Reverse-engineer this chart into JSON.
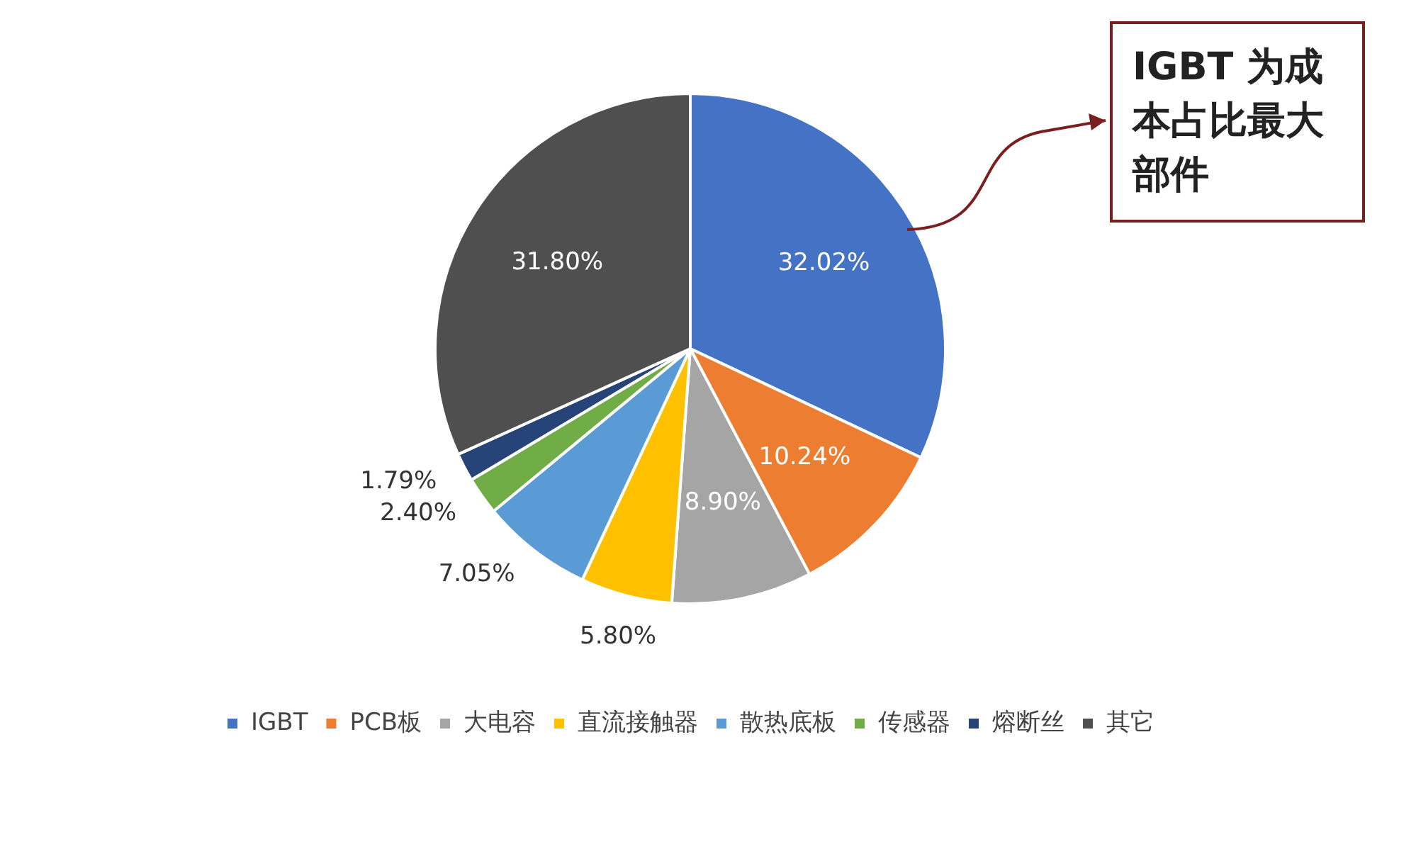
{
  "chart_data": {
    "type": "pie",
    "categories": [
      "IGBT",
      "PCB板",
      "大电容",
      "直流接触器",
      "散热底板",
      "传感器",
      "熔断丝",
      "其它"
    ],
    "values": [
      32.02,
      10.24,
      8.9,
      5.8,
      7.05,
      2.4,
      1.79,
      31.8
    ],
    "colors": [
      "#4472c4",
      "#ed7d31",
      "#a5a5a5",
      "#ffc000",
      "#5b9bd5",
      "#70ad47",
      "#264478",
      "#4f4f4f"
    ],
    "value_labels": [
      "32.02%",
      "10.24%",
      "8.90%",
      "5.80%",
      "7.05%",
      "2.40%",
      "1.79%",
      "31.80%"
    ],
    "legend": "bottom",
    "annotations": [
      "IGBT 为成本占比最大部件"
    ]
  }
}
